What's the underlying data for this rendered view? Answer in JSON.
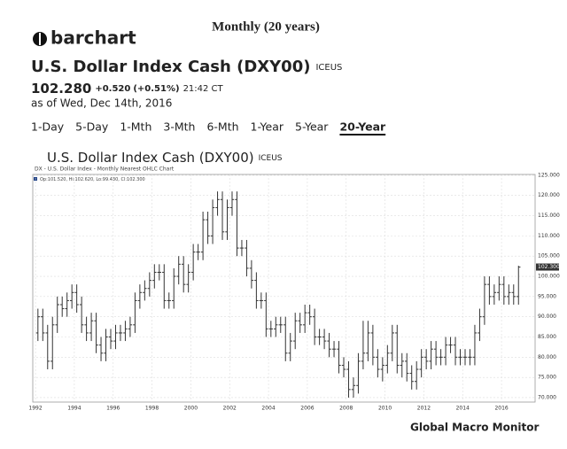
{
  "page_title": "Monthly (20 years)",
  "logo": "barchart",
  "instrument": {
    "name": "U.S. Dollar Index Cash (DXY00)",
    "exchange": "ICEUS",
    "price": "102.280",
    "change": "+0.520",
    "change_pct": "(+0.51%)",
    "time": "21:42 CT",
    "as_of": "as of Wed, Dec 14th, 2016"
  },
  "tabs": [
    "1-Day",
    "5-Day",
    "1-Mth",
    "3-Mth",
    "6-Mth",
    "1-Year",
    "5-Year",
    "20-Year"
  ],
  "active_tab": 7,
  "chart_heading": {
    "name": "U.S. Dollar Index Cash (DXY00)",
    "exchange": "ICEUS"
  },
  "footer": "Global Macro Monitor",
  "chart_data": {
    "type": "ohlc",
    "title": "DX - U.S. Dollar Index - Monthly Nearest OHLC Chart",
    "legend_text": "Op:101.520, Hi:102.620, Lo:99.430, Cl:102.300",
    "color": "#333333",
    "grid": true,
    "xlim": [
      1991.86,
      2017.73
    ],
    "xticks": [
      1992,
      1994,
      1996,
      1998,
      2000,
      2002,
      2004,
      2006,
      2008,
      2010,
      2012,
      2014,
      2016
    ],
    "ylim": [
      68.9,
      125.2
    ],
    "yticks": [
      {
        "value": 70,
        "label": "70.000"
      },
      {
        "value": 75,
        "label": "75.000"
      },
      {
        "value": 80,
        "label": "80.000"
      },
      {
        "value": 85,
        "label": "85.000"
      },
      {
        "value": 90,
        "label": "90.000"
      },
      {
        "value": 95,
        "label": "95.000"
      },
      {
        "value": 100,
        "label": "100.000"
      },
      {
        "value": 105,
        "label": "105.000"
      },
      {
        "value": 110,
        "label": "110.000"
      },
      {
        "value": 115,
        "label": "115.000"
      },
      {
        "value": 120,
        "label": "120.000"
      },
      {
        "value": 125,
        "label": "125.000"
      }
    ],
    "last_price": {
      "value": 102.3,
      "label": "102.300"
    },
    "x": [
      1992.125,
      1992.375,
      1992.625,
      1992.875,
      1993.125,
      1993.375,
      1993.625,
      1993.875,
      1994.125,
      1994.375,
      1994.625,
      1994.875,
      1995.125,
      1995.375,
      1995.625,
      1995.875,
      1996.125,
      1996.375,
      1996.625,
      1996.875,
      1997.125,
      1997.375,
      1997.625,
      1997.875,
      1998.125,
      1998.375,
      1998.625,
      1998.875,
      1999.125,
      1999.375,
      1999.625,
      1999.875,
      2000.125,
      2000.375,
      2000.625,
      2000.875,
      2001.125,
      2001.375,
      2001.625,
      2001.875,
      2002.125,
      2002.375,
      2002.625,
      2002.875,
      2003.125,
      2003.375,
      2003.625,
      2003.875,
      2004.125,
      2004.375,
      2004.625,
      2004.875,
      2005.125,
      2005.375,
      2005.625,
      2005.875,
      2006.125,
      2006.375,
      2006.625,
      2006.875,
      2007.125,
      2007.375,
      2007.625,
      2007.875,
      2008.125,
      2008.375,
      2008.625,
      2008.875,
      2009.125,
      2009.375,
      2009.625,
      2009.875,
      2010.125,
      2010.375,
      2010.625,
      2010.875,
      2011.125,
      2011.375,
      2011.625,
      2011.875,
      2012.125,
      2012.375,
      2012.625,
      2012.875,
      2013.125,
      2013.375,
      2013.625,
      2013.875,
      2014.125,
      2014.375,
      2014.625,
      2014.875,
      2015.125,
      2015.375,
      2015.625,
      2015.875,
      2016.125,
      2016.375,
      2016.625,
      2016.875
    ],
    "open": [
      86,
      90,
      86,
      79,
      88,
      93,
      92,
      94,
      96,
      93,
      88,
      86,
      89,
      83,
      81,
      85,
      84,
      86,
      86,
      87,
      88,
      94,
      96,
      97,
      99,
      101,
      101,
      94,
      94,
      100,
      103,
      98,
      101,
      106,
      106,
      114,
      110,
      117,
      119,
      111,
      117,
      119,
      107,
      107,
      102,
      99,
      94,
      94,
      87,
      87,
      88,
      88,
      81,
      84,
      89,
      88,
      91,
      90,
      85,
      85,
      84,
      82,
      82,
      78,
      77,
      72,
      73,
      79,
      81,
      86,
      80,
      77,
      78,
      81,
      86,
      78,
      79,
      76,
      74,
      77,
      80,
      79,
      82,
      80,
      80,
      83,
      83,
      80,
      80,
      80,
      80,
      86,
      90,
      98,
      95,
      96,
      98,
      95,
      96,
      95
    ],
    "high": [
      92,
      92,
      88,
      90,
      95,
      95,
      96,
      98,
      98,
      95,
      90,
      91,
      91,
      85,
      87,
      87,
      88,
      88,
      89,
      90,
      96,
      98,
      99,
      101,
      103,
      103,
      103,
      96,
      102,
      105,
      105,
      103,
      108,
      108,
      116,
      116,
      119,
      121,
      121,
      119,
      121,
      121,
      109,
      109,
      104,
      101,
      96,
      96,
      89,
      90,
      90,
      90,
      86,
      91,
      91,
      93,
      93,
      92,
      87,
      87,
      86,
      84,
      84,
      80,
      79,
      75,
      81,
      89,
      89,
      88,
      82,
      80,
      83,
      88,
      88,
      81,
      81,
      78,
      79,
      82,
      82,
      84,
      84,
      82,
      85,
      85,
      85,
      82,
      82,
      82,
      88,
      92,
      100,
      100,
      98,
      100,
      100,
      98,
      98,
      102.62
    ],
    "low": [
      84,
      84,
      77,
      77,
      86,
      90,
      90,
      92,
      91,
      86,
      84,
      84,
      81,
      79,
      79,
      82,
      82,
      84,
      84,
      85,
      86,
      92,
      94,
      95,
      97,
      99,
      92,
      92,
      92,
      98,
      96,
      96,
      99,
      104,
      104,
      108,
      108,
      115,
      109,
      109,
      115,
      105,
      105,
      100,
      97,
      92,
      92,
      85,
      85,
      85,
      86,
      79,
      79,
      82,
      86,
      86,
      88,
      83,
      83,
      82,
      80,
      80,
      76,
      75,
      70,
      70,
      71,
      77,
      79,
      78,
      75,
      74,
      76,
      79,
      76,
      75,
      74,
      72,
      72,
      75,
      77,
      77,
      78,
      78,
      78,
      81,
      78,
      78,
      78,
      78,
      78,
      84,
      88,
      93,
      93,
      94,
      93,
      93,
      93,
      93
    ],
    "close": [
      90,
      86,
      79,
      88,
      93,
      92,
      94,
      96,
      93,
      88,
      86,
      89,
      83,
      81,
      85,
      84,
      86,
      86,
      87,
      88,
      94,
      96,
      97,
      99,
      101,
      101,
      94,
      94,
      100,
      103,
      98,
      101,
      106,
      106,
      114,
      110,
      117,
      119,
      111,
      117,
      119,
      107,
      107,
      102,
      99,
      94,
      94,
      87,
      87,
      88,
      88,
      81,
      84,
      89,
      88,
      91,
      90,
      85,
      85,
      84,
      82,
      82,
      78,
      77,
      72,
      73,
      79,
      81,
      86,
      80,
      77,
      78,
      81,
      86,
      78,
      79,
      76,
      74,
      77,
      80,
      79,
      82,
      80,
      80,
      83,
      83,
      80,
      80,
      80,
      80,
      86,
      90,
      98,
      95,
      96,
      98,
      95,
      96,
      95,
      102.28
    ]
  }
}
